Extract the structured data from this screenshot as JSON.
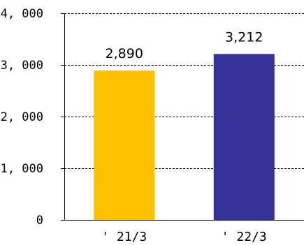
{
  "chart_data": {
    "type": "bar",
    "categories": [
      "' 21/3",
      "' 22/3"
    ],
    "values": [
      2890,
      3212
    ],
    "value_labels": [
      "2,890",
      "3,212"
    ],
    "ylim": [
      0,
      4000
    ],
    "y_ticks": [
      0,
      1000,
      2000,
      3000,
      4000
    ],
    "y_tick_labels": [
      "0",
      "1, 000",
      "2, 000",
      "3, 000",
      "4, 000"
    ],
    "colors": [
      "#FFC000",
      "#333399"
    ],
    "grid": true,
    "grid_style": "dashed",
    "legend": "none"
  }
}
